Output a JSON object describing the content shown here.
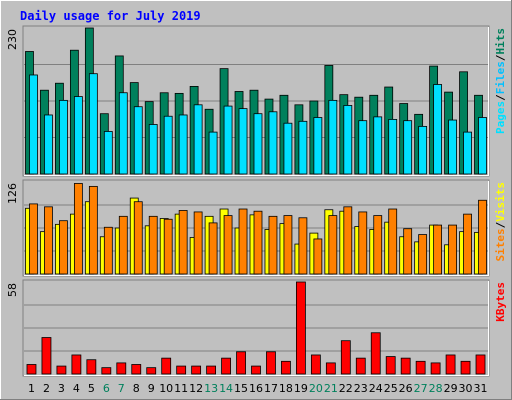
{
  "colors": {
    "background": "#c0c0c0",
    "panel": "#c0c0c0",
    "title": "#0000ff",
    "hits": "#00805c",
    "files": "#00c0ff",
    "pages": "#00e0ff",
    "visits": "#ffff00",
    "sites": "#ff8000",
    "kbytes": "#ff0000",
    "weekend": "#00805c",
    "weekday": "#000000",
    "grid": "#808080"
  },
  "chart_data": {
    "type": "bar",
    "title": "Daily usage for July 2019",
    "categories": [
      "1",
      "2",
      "3",
      "4",
      "5",
      "6",
      "7",
      "8",
      "9",
      "10",
      "11",
      "12",
      "13",
      "14",
      "15",
      "16",
      "17",
      "18",
      "19",
      "20",
      "21",
      "22",
      "23",
      "24",
      "25",
      "26",
      "27",
      "28",
      "29",
      "30",
      "31"
    ],
    "weekend_days": [
      "6",
      "7",
      "13",
      "14",
      "20",
      "21",
      "27",
      "28"
    ],
    "panels": [
      {
        "id": "hits-files",
        "ymax_label": "230",
        "ymax": 230,
        "legend": [
          {
            "text": "Pages",
            "color": "#00e0ff"
          },
          {
            "text": "/",
            "color": "#000000"
          },
          {
            "text": "Files",
            "color": "#00c0ff"
          },
          {
            "text": "/",
            "color": "#000000"
          },
          {
            "text": "Hits",
            "color": "#00805c"
          }
        ],
        "series": [
          {
            "name": "Hits",
            "color": "#00805c",
            "values": [
              193,
              132,
              143,
              195,
              230,
              95,
              186,
              144,
              114,
              128,
              127,
              138,
              102,
              166,
              130,
              132,
              118,
              124,
              109,
              115,
              171,
              125,
              121,
              124,
              137,
              111,
              94,
              170,
              129,
              161,
              124
            ]
          },
          {
            "name": "Files",
            "color": "#00e0ff",
            "values": [
              156,
              93,
              116,
              122,
              158,
              67,
              128,
              106,
              78,
              91,
              93,
              109,
              66,
              107,
              103,
              95,
              98,
              80,
              83,
              89,
              116,
              108,
              84,
              90,
              86,
              84,
              75,
              141,
              85,
              66,
              89
            ]
          }
        ]
      },
      {
        "id": "visits-sites",
        "ymax_label": "126",
        "ymax": 126,
        "legend": [
          {
            "text": "Sites",
            "color": "#ff8000"
          },
          {
            "text": "/",
            "color": "#000000"
          },
          {
            "text": "Visits",
            "color": "#ffff00"
          }
        ],
        "series": [
          {
            "name": "Visits",
            "color": "#ffff00",
            "values": [
              90,
              58,
              68,
              82,
              99,
              51,
              63,
              104,
              66,
              76,
              82,
              50,
              79,
              89,
              63,
              81,
              61,
              69,
              41,
              56,
              88,
              86,
              65,
              61,
              71,
              51,
              44,
              67,
              40,
              58,
              57
            ]
          },
          {
            "name": "Sites",
            "color": "#ff8000",
            "values": [
              96,
              92,
              73,
              124,
              120,
              64,
              79,
              99,
              79,
              75,
              87,
              85,
              70,
              80,
              89,
              86,
              79,
              80,
              77,
              48,
              80,
              92,
              85,
              80,
              89,
              62,
              54,
              67,
              67,
              82,
              101
            ]
          }
        ]
      },
      {
        "id": "kbytes",
        "ymax_label": "58",
        "ymax": 58,
        "legend": [
          {
            "text": "KBytes",
            "color": "#ff0000"
          }
        ],
        "series": [
          {
            "name": "KBytes",
            "color": "#ff0000",
            "values": [
              6,
              23,
              5,
              12,
              9,
              4,
              7,
              6,
              4,
              10,
              5,
              5,
              5,
              10,
              14,
              5,
              14,
              8,
              58,
              12,
              7,
              21,
              10,
              26,
              11,
              10,
              8,
              7,
              12,
              8,
              12
            ]
          }
        ]
      }
    ]
  }
}
